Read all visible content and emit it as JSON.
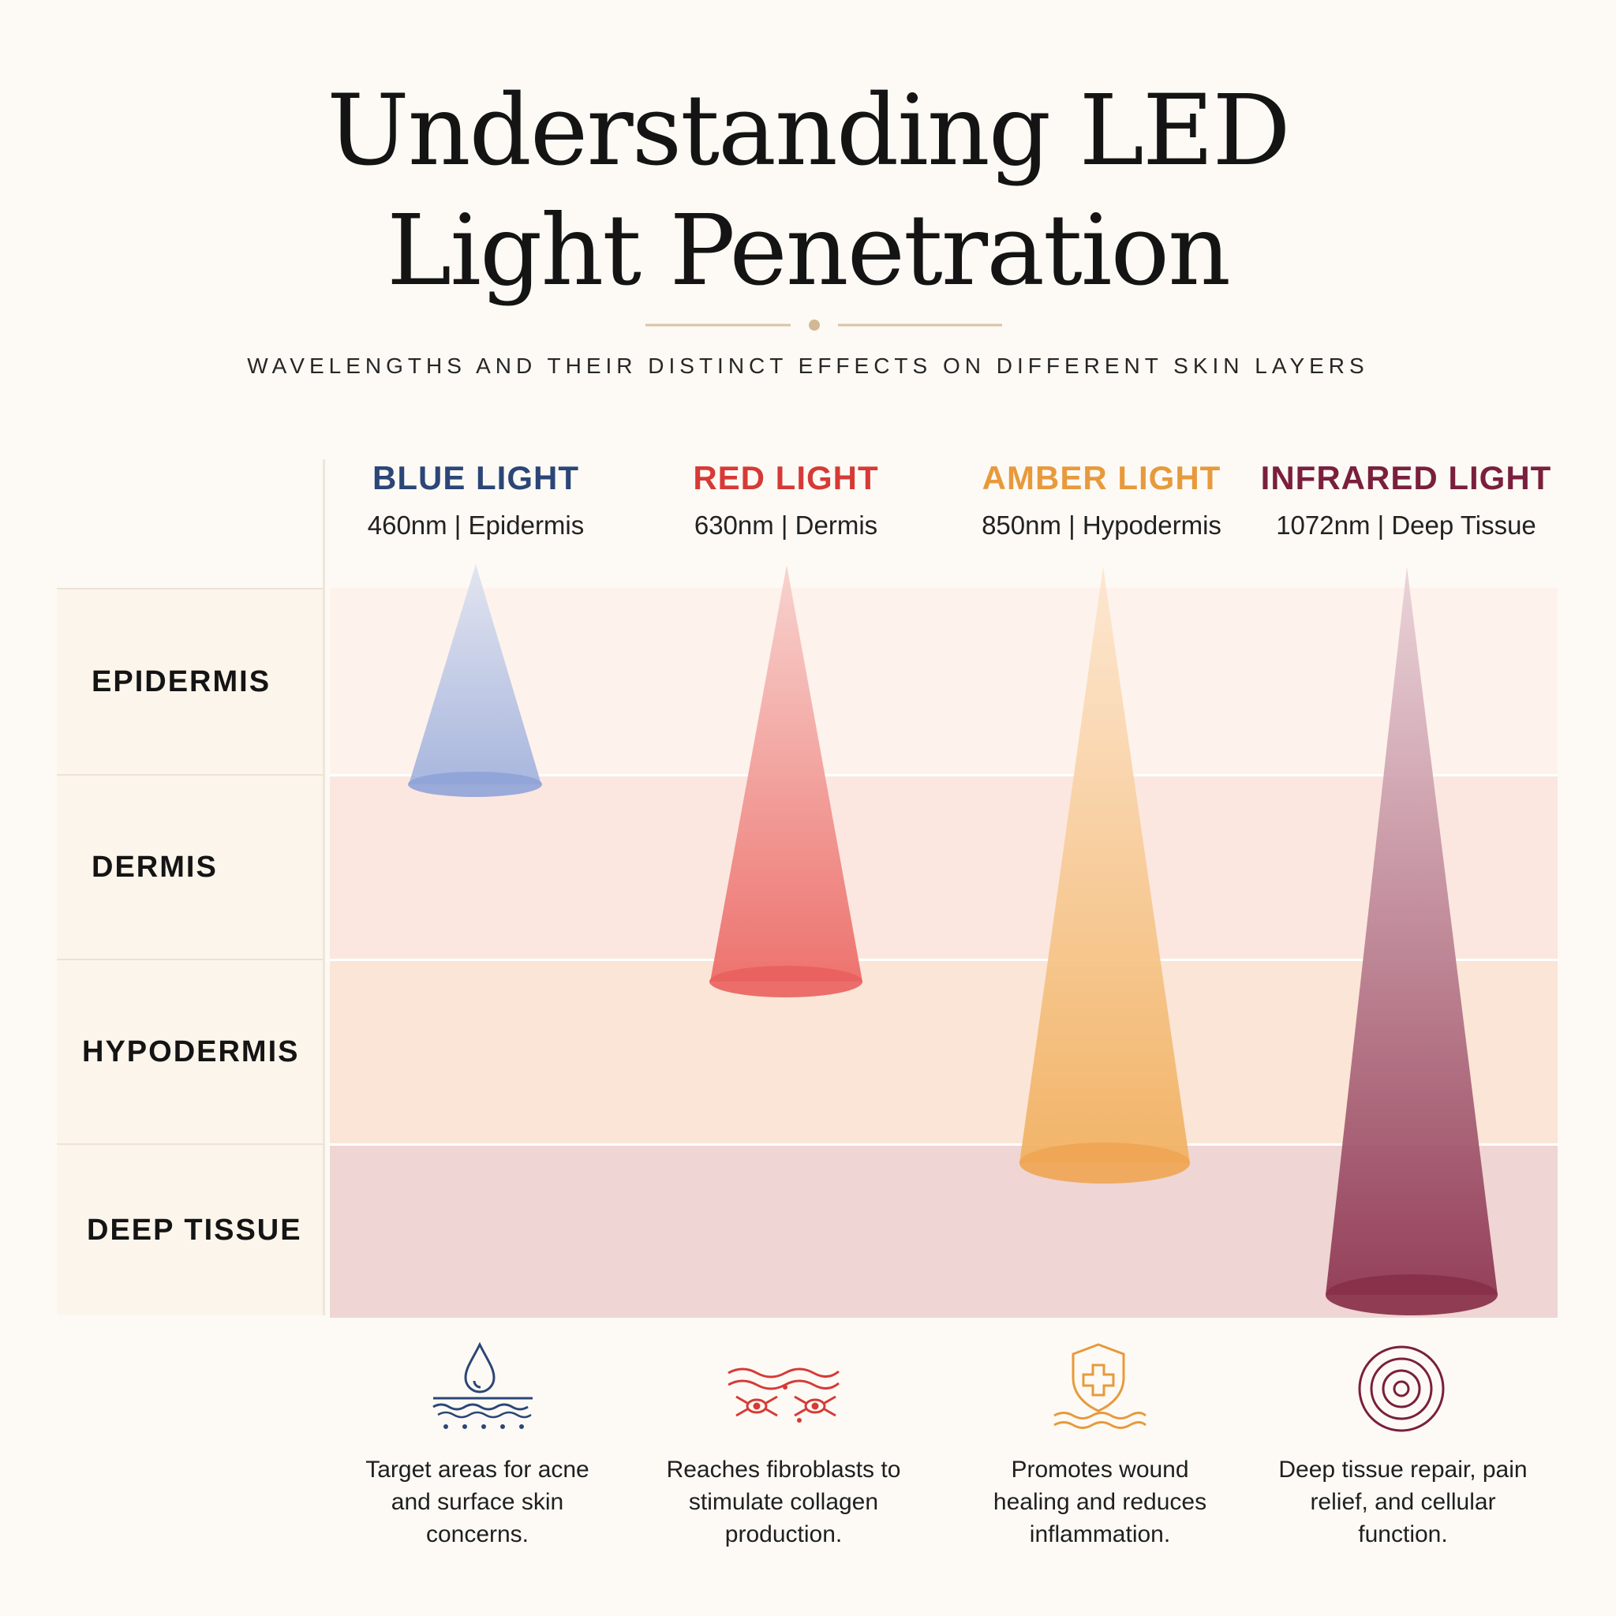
{
  "title": {
    "line1": "Understanding LED",
    "line2": "Light Penetration",
    "subtitle": "WAVELENGTHS AND THEIR DISTINCT EFFECTS ON DIFFERENT SKIN LAYERS"
  },
  "colors": {
    "background": "#fdfaf5",
    "ornament": "#d9c3a6",
    "blue": "#2b4677",
    "red": "#d63a36",
    "amber": "#e79a3c",
    "infrared": "#7a1f3d"
  },
  "layers": [
    {
      "label": "EPIDERMIS",
      "band_color": "#fdf2ec"
    },
    {
      "label": "DERMIS",
      "band_color": "#fbe7df"
    },
    {
      "label": "HYPODERMIS",
      "band_color": "#fbe5d6"
    },
    {
      "label": "DEEP TISSUE",
      "band_color": "#efd5d3"
    }
  ],
  "lights": [
    {
      "name": "BLUE LIGHT",
      "wavelength": "460nm",
      "target": "Epidermis",
      "spec": "460nm | Epidermis",
      "color": "#2b4677",
      "penetrates_to": "Epidermis",
      "icon": "water-drop-skin-icon",
      "benefit": "Target areas for acne and surface skin concerns."
    },
    {
      "name": "RED LIGHT",
      "wavelength": "630nm",
      "target": "Dermis",
      "spec": "630nm | Dermis",
      "color": "#d63a36",
      "penetrates_to": "Dermis",
      "icon": "fibroblast-cells-icon",
      "benefit": "Reaches fibroblasts to stimulate collagen production."
    },
    {
      "name": "AMBER LIGHT",
      "wavelength": "850nm",
      "target": "Hypodermis",
      "spec": "850nm | Hypodermis",
      "color": "#e79a3c",
      "penetrates_to": "Hypodermis",
      "icon": "shield-cross-icon",
      "benefit": "Promotes wound healing and reduces inflammation."
    },
    {
      "name": "INFRARED LIGHT",
      "wavelength": "1072nm",
      "target": "Deep Tissue",
      "spec": "1072nm | Deep Tissue",
      "color": "#7a1f3d",
      "penetrates_to": "Deep Tissue",
      "icon": "concentric-target-icon",
      "benefit": "Deep tissue repair, pain relief, and cellular function."
    }
  ]
}
